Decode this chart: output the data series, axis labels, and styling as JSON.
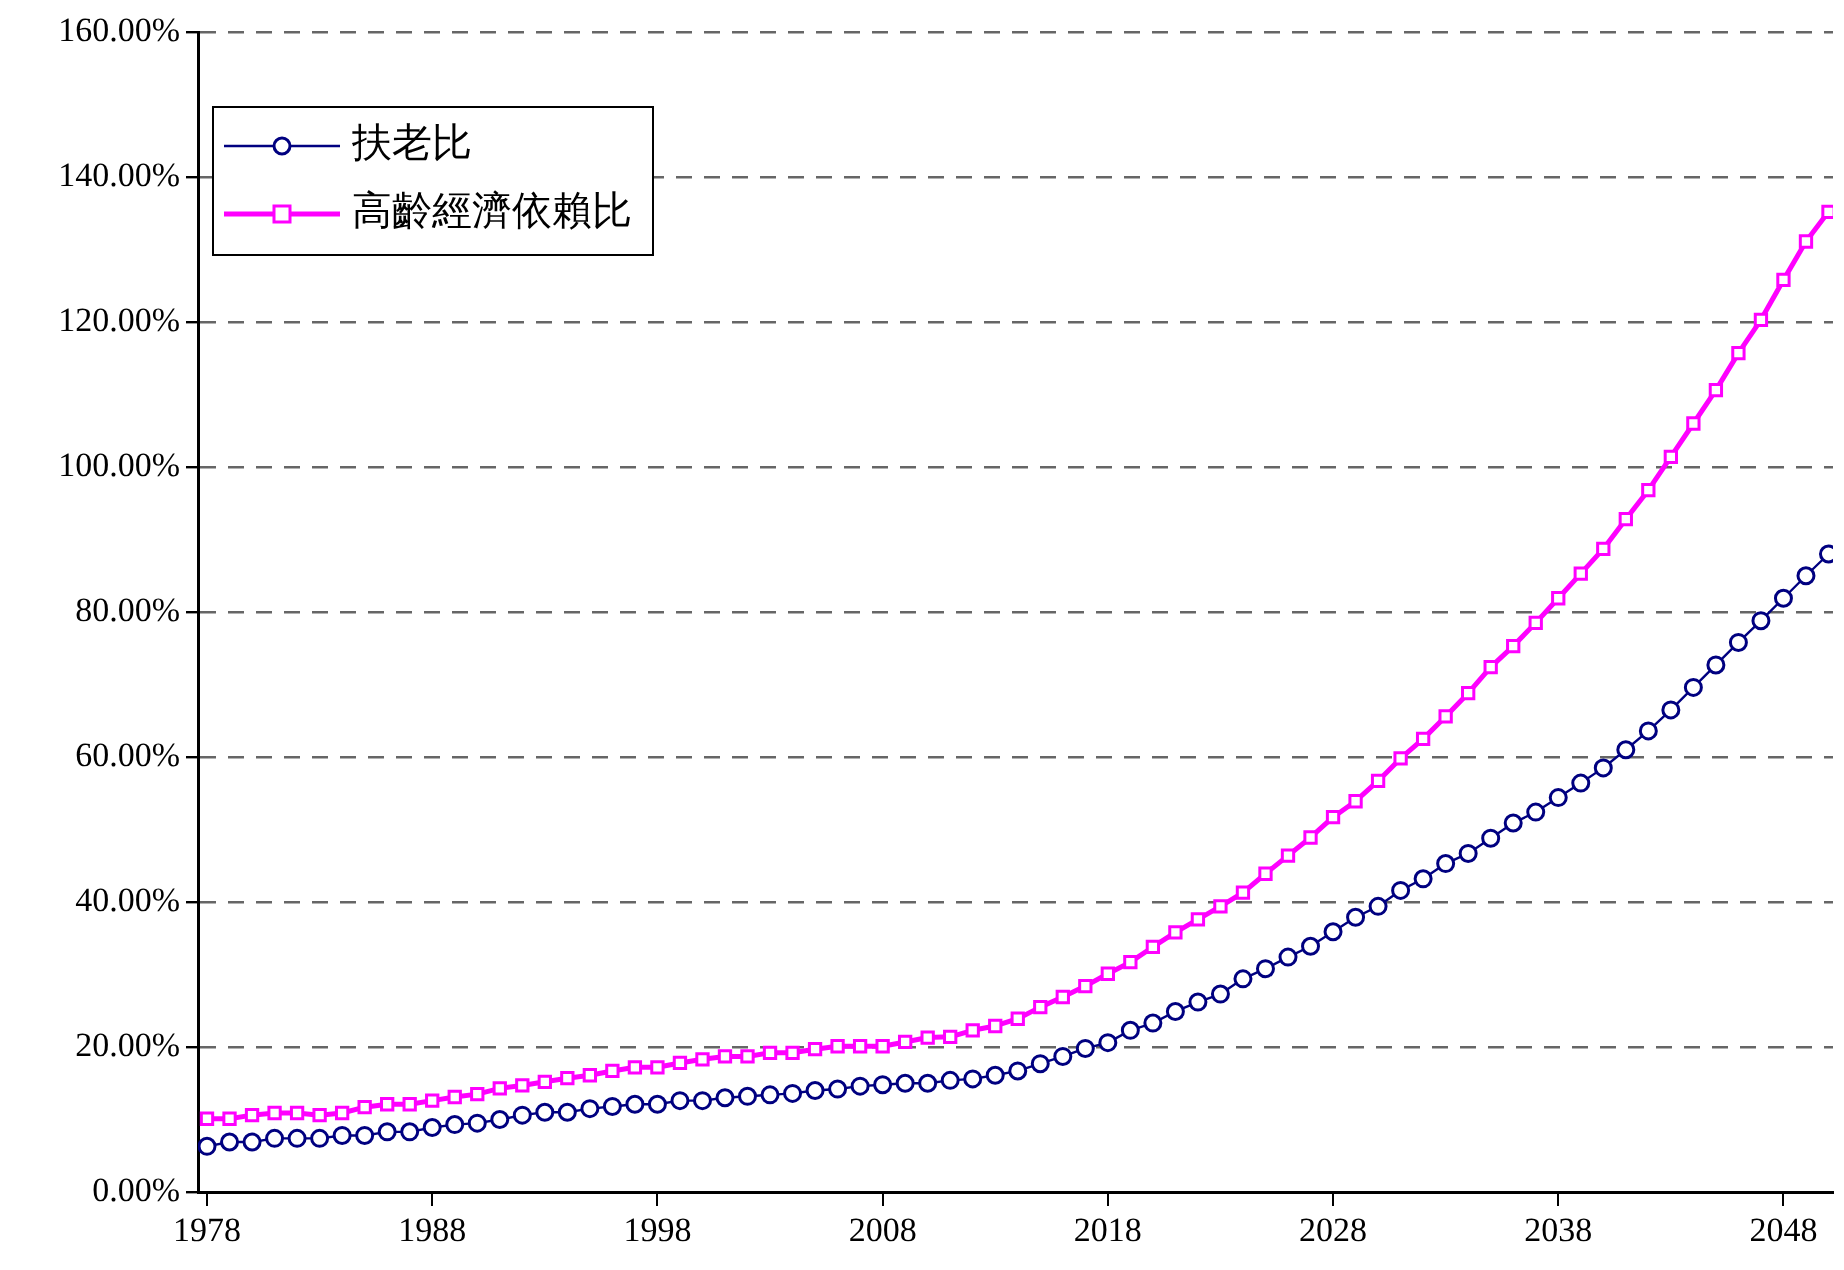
{
  "chart_data": {
    "type": "line",
    "x": [
      1978,
      1979,
      1980,
      1981,
      1982,
      1983,
      1984,
      1985,
      1986,
      1987,
      1988,
      1989,
      1990,
      1991,
      1992,
      1993,
      1994,
      1995,
      1996,
      1997,
      1998,
      1999,
      2000,
      2001,
      2002,
      2003,
      2004,
      2005,
      2006,
      2007,
      2008,
      2009,
      2010,
      2011,
      2012,
      2013,
      2014,
      2015,
      2016,
      2017,
      2018,
      2019,
      2020,
      2021,
      2022,
      2023,
      2024,
      2025,
      2026,
      2027,
      2028,
      2029,
      2030,
      2031,
      2032,
      2033,
      2034,
      2035,
      2036,
      2037,
      2038,
      2039,
      2040,
      2041,
      2042,
      2043,
      2044,
      2045,
      2046,
      2047,
      2048,
      2049,
      2050
    ],
    "series": [
      {
        "name": "扶老比",
        "color": "#000080",
        "marker": "circle",
        "values": [
          6.3,
          6.9,
          6.9,
          7.4,
          7.4,
          7.4,
          7.8,
          7.8,
          8.3,
          8.3,
          8.9,
          9.3,
          9.5,
          10.0,
          10.6,
          11.0,
          11.0,
          11.5,
          11.8,
          12.1,
          12.1,
          12.6,
          12.6,
          13.0,
          13.2,
          13.4,
          13.6,
          14.0,
          14.2,
          14.6,
          14.8,
          15.0,
          15.0,
          15.4,
          15.6,
          16.1,
          16.7,
          17.7,
          18.7,
          19.8,
          20.6,
          22.3,
          23.3,
          24.9,
          26.2,
          27.3,
          29.4,
          30.8,
          32.4,
          33.9,
          35.9,
          37.9,
          39.4,
          41.6,
          43.2,
          45.3,
          46.7,
          48.8,
          50.9,
          52.4,
          54.4,
          56.4,
          58.5,
          61.0,
          63.6,
          66.5,
          69.6,
          72.7,
          75.8,
          78.8,
          81.9,
          85.0,
          88.0
        ]
      },
      {
        "name": "高齡經濟依賴比",
        "color": "#ff00ff",
        "marker": "square",
        "values": [
          10.1,
          10.1,
          10.6,
          10.9,
          10.9,
          10.6,
          10.9,
          11.7,
          12.1,
          12.1,
          12.6,
          13.1,
          13.5,
          14.3,
          14.7,
          15.2,
          15.7,
          16.1,
          16.7,
          17.2,
          17.2,
          17.8,
          18.3,
          18.7,
          18.7,
          19.2,
          19.2,
          19.7,
          20.1,
          20.1,
          20.1,
          20.7,
          21.3,
          21.4,
          22.3,
          22.9,
          23.9,
          25.5,
          26.9,
          28.4,
          30.1,
          31.7,
          33.8,
          35.8,
          37.6,
          39.4,
          41.3,
          43.9,
          46.4,
          48.9,
          51.7,
          53.9,
          56.7,
          59.8,
          62.5,
          65.6,
          68.8,
          72.4,
          75.3,
          78.5,
          81.9,
          85.3,
          88.7,
          92.8,
          96.8,
          101.4,
          106.0,
          110.6,
          115.7,
          120.3,
          125.8,
          131.1,
          135.2
        ]
      }
    ],
    "xlim": [
      1977.6,
      2050.2
    ],
    "xticks": [
      1978,
      1988,
      1998,
      2008,
      2018,
      2028,
      2038,
      2048
    ],
    "ylim": [
      0,
      160
    ],
    "yticks": [
      {
        "value": 0,
        "label": "0.00%"
      },
      {
        "value": 20,
        "label": "20.00%"
      },
      {
        "value": 40,
        "label": "40.00%"
      },
      {
        "value": 60,
        "label": "60.00%"
      },
      {
        "value": 80,
        "label": "80.00%"
      },
      {
        "value": 100,
        "label": "100.00%"
      },
      {
        "value": 120,
        "label": "120.00%"
      },
      {
        "value": 140,
        "label": "140.00%"
      },
      {
        "value": 160,
        "label": "160.00%"
      }
    ],
    "grid": "y",
    "legend": "top left",
    "line_style": "solid"
  }
}
